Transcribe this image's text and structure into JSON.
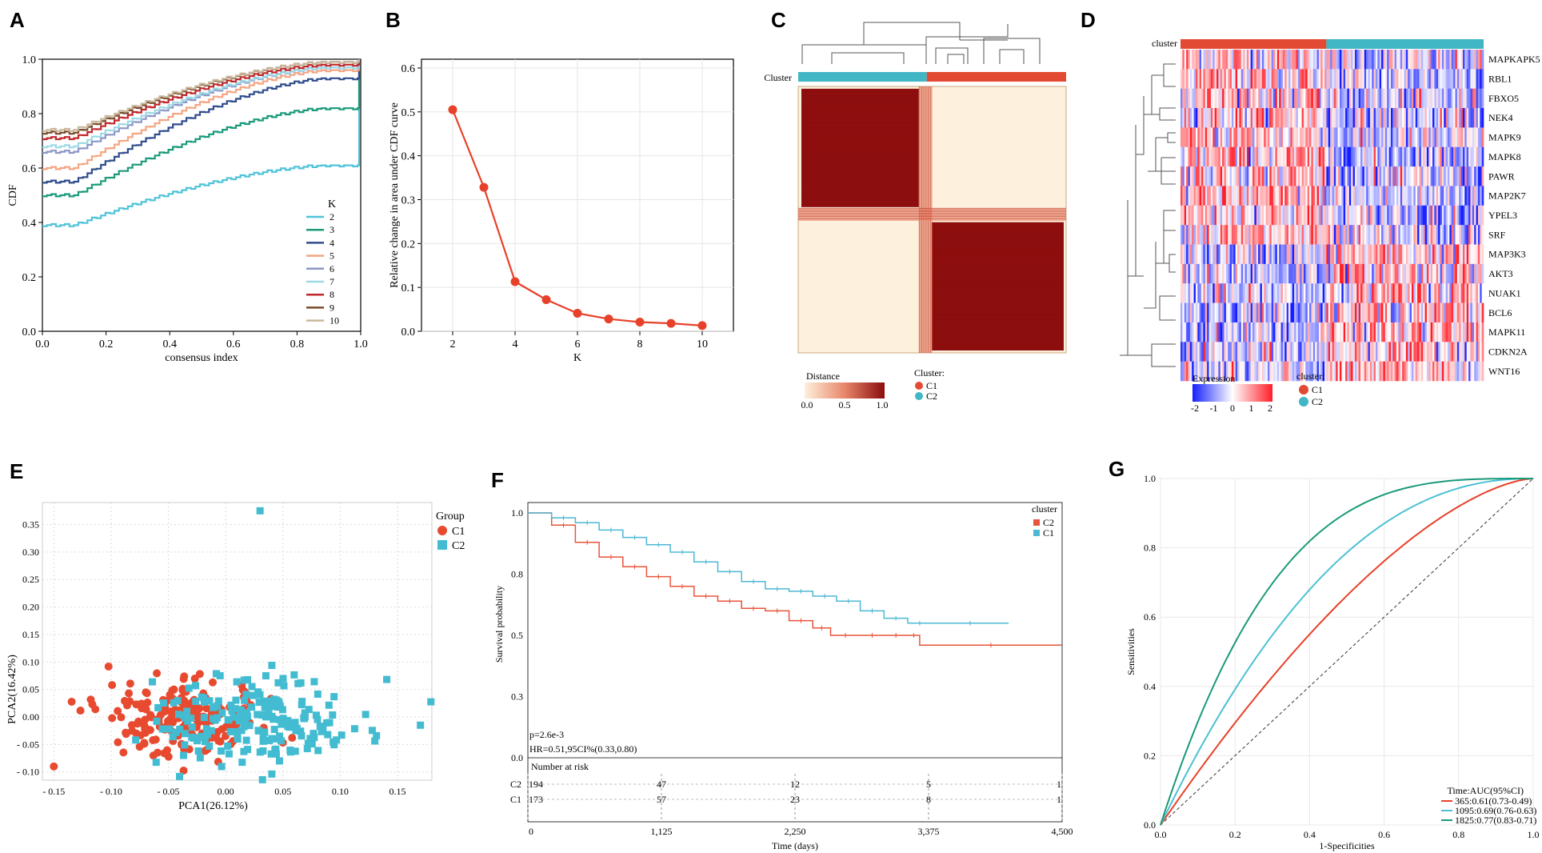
{
  "chart_data": [
    {
      "id": "A",
      "type": "line",
      "panel_label": "A",
      "xlabel": "consensus index",
      "ylabel": "CDF",
      "xlim": [
        0,
        1
      ],
      "ylim": [
        0,
        1
      ],
      "xticks": [
        "0.0",
        "0.2",
        "0.4",
        "0.6",
        "0.8",
        "1.0"
      ],
      "yticks": [
        "0.0",
        "0.2",
        "0.4",
        "0.6",
        "0.8",
        "1.0"
      ],
      "legend_title": "K",
      "series": [
        {
          "name": "2",
          "color": "#4fc3d9",
          "start": 0.39,
          "end": 0.61
        },
        {
          "name": "3",
          "color": "#1a9a7a",
          "start": 0.5,
          "end": 0.82
        },
        {
          "name": "4",
          "color": "#2f4c8c",
          "start": 0.55,
          "end": 0.93
        },
        {
          "name": "5",
          "color": "#f4a582",
          "start": 0.6,
          "end": 0.96
        },
        {
          "name": "6",
          "color": "#8c96c6",
          "start": 0.66,
          "end": 0.97
        },
        {
          "name": "7",
          "color": "#9ed9e6",
          "start": 0.68,
          "end": 0.97
        },
        {
          "name": "8",
          "color": "#c0282d",
          "start": 0.71,
          "end": 0.98
        },
        {
          "name": "9",
          "color": "#7a4a2a",
          "start": 0.73,
          "end": 0.99
        },
        {
          "name": "10",
          "color": "#c9b79c",
          "start": 0.74,
          "end": 0.99
        }
      ]
    },
    {
      "id": "B",
      "type": "line",
      "panel_label": "B",
      "xlabel": "K",
      "ylabel": "Relative change in area under CDF curve",
      "xlim": [
        1,
        11
      ],
      "ylim": [
        0,
        0.62
      ],
      "xticks": [
        "2",
        "4",
        "6",
        "8",
        "10"
      ],
      "yticks": [
        "0.0",
        "0.1",
        "0.2",
        "0.3",
        "0.4",
        "0.5",
        "0.6"
      ],
      "x": [
        2,
        3,
        4,
        5,
        6,
        7,
        8,
        9,
        10
      ],
      "values": [
        0.505,
        0.328,
        0.113,
        0.072,
        0.041,
        0.028,
        0.021,
        0.018,
        0.013
      ],
      "color": "#e8412a"
    },
    {
      "id": "C",
      "type": "heatmap",
      "panel_label": "C",
      "annotation_label": "Cluster",
      "legend_title": "Distance",
      "colorbar_ticks": [
        "0.0",
        "0.5",
        "1.0"
      ],
      "cluster_legend_title": "Cluster:",
      "clusters": [
        {
          "name": "C1",
          "color": "#e34a33"
        },
        {
          "name": "C2",
          "color": "#41b6c4"
        }
      ],
      "block_fraction_first": 0.48
    },
    {
      "id": "D",
      "type": "heatmap",
      "panel_label": "D",
      "annotation_label": "cluster",
      "genes": [
        "MAPKAPK5",
        "RBL1",
        "FBXO5",
        "NEK4",
        "MAPK9",
        "MAPK8",
        "PAWR",
        "MAP2K7",
        "YPEL3",
        "SRF",
        "MAP3K3",
        "AKT3",
        "NUAK1",
        "BCL6",
        "MAPK11",
        "CDKN2A",
        "WNT16"
      ],
      "legend_title": "Expression",
      "colorbar_ticks": [
        "-2",
        "-1",
        "0",
        "1",
        "2"
      ],
      "cluster_legend_title": "cluster:",
      "clusters": [
        {
          "name": "C1",
          "color": "#e34a33"
        },
        {
          "name": "C2",
          "color": "#41b6c4"
        }
      ],
      "columns": 160
    },
    {
      "id": "E",
      "type": "scatter",
      "panel_label": "E",
      "xlabel": "PCA1(26.12%)",
      "ylabel": "PCA2(16.42%)",
      "xlim": [
        -0.16,
        0.18
      ],
      "ylim": [
        -0.115,
        0.39
      ],
      "xticks": [
        "- 0.15",
        "- 0.10",
        "- 0.05",
        "0.00",
        "0.05",
        "0.10",
        "0.15"
      ],
      "yticks": [
        "- 0.10",
        "- 0.05",
        "0.00",
        "0.05",
        "0.10",
        "0.15",
        "0.20",
        "0.25",
        "0.30",
        "0.35"
      ],
      "legend_title": "Group",
      "groups": [
        {
          "name": "C1",
          "color": "#e84a30",
          "shape": "circle",
          "center": [
            -0.04,
            -0.005
          ],
          "spread": [
            0.035,
            0.035
          ],
          "n": 190
        },
        {
          "name": "C2",
          "color": "#43bcd2",
          "shape": "square",
          "center": [
            0.03,
            -0.01
          ],
          "spread": [
            0.045,
            0.045
          ],
          "n": 200
        }
      ],
      "outliers": [
        {
          "group": "C2",
          "x": 0.03,
          "y": 0.375
        },
        {
          "group": "C1",
          "x": -0.15,
          "y": -0.09
        },
        {
          "group": "C2",
          "x": 0.17,
          "y": -0.015
        }
      ]
    },
    {
      "id": "F",
      "type": "line",
      "panel_label": "F",
      "xlabel": "Time (days)",
      "ylabel": "Survival probability",
      "xlim": [
        0,
        4500
      ],
      "ylim": [
        0,
        1
      ],
      "xticks": [
        "0",
        "1,125",
        "2,250",
        "3,375",
        "4,500"
      ],
      "yticks": [
        "0.0",
        "0.3",
        "0.5",
        "0.8",
        "1.0"
      ],
      "legend_title": "cluster",
      "pvalue_text": "p=2.6e-3",
      "hr_text": "HR=0.51,95CI%(0.33,0.80)",
      "risk_table_title": "Number at risk",
      "series": [
        {
          "name": "C2",
          "color": "#e8543a",
          "x": [
            0,
            200,
            400,
            600,
            800,
            1000,
            1200,
            1400,
            1600,
            1800,
            2000,
            2200,
            2400,
            2550,
            2800,
            3000,
            3200,
            3300,
            4500
          ],
          "y": [
            1.0,
            0.95,
            0.88,
            0.82,
            0.78,
            0.74,
            0.7,
            0.66,
            0.64,
            0.61,
            0.6,
            0.56,
            0.53,
            0.5,
            0.5,
            0.5,
            0.5,
            0.46,
            0.46
          ],
          "at_risk": [
            "194",
            "47",
            "12",
            "5",
            "1"
          ]
        },
        {
          "name": "C1",
          "color": "#4cb8d4",
          "x": [
            0,
            200,
            400,
            600,
            800,
            1000,
            1200,
            1400,
            1600,
            1800,
            2000,
            2200,
            2400,
            2600,
            2800,
            3000,
            3200,
            3400,
            4050
          ],
          "y": [
            1.0,
            0.98,
            0.96,
            0.93,
            0.9,
            0.87,
            0.84,
            0.8,
            0.76,
            0.72,
            0.69,
            0.68,
            0.66,
            0.64,
            0.6,
            0.57,
            0.55,
            0.55,
            0.55
          ],
          "at_risk": [
            "173",
            "57",
            "23",
            "8",
            "1"
          ]
        }
      ]
    },
    {
      "id": "G",
      "type": "line",
      "panel_label": "G",
      "xlabel": "1-Specificities",
      "ylabel": "Sensitivities",
      "xlim": [
        0,
        1
      ],
      "ylim": [
        0,
        1
      ],
      "xticks": [
        "0.0",
        "0.2",
        "0.4",
        "0.6",
        "0.8",
        "1.0"
      ],
      "yticks": [
        "0.0",
        "0.2",
        "0.4",
        "0.6",
        "0.8",
        "1.0"
      ],
      "legend_title": "Time:AUC(95%CI)",
      "series": [
        {
          "name": "365:0.61(0.73-0.49)",
          "auc": 0.61,
          "color": "#e8412a"
        },
        {
          "name": "1095:0.69(0.76-0.63)",
          "auc": 0.69,
          "color": "#4cc0d4"
        },
        {
          "name": "1825:0.77(0.83-0.71)",
          "auc": 0.77,
          "color": "#1a9a7a"
        }
      ]
    }
  ]
}
